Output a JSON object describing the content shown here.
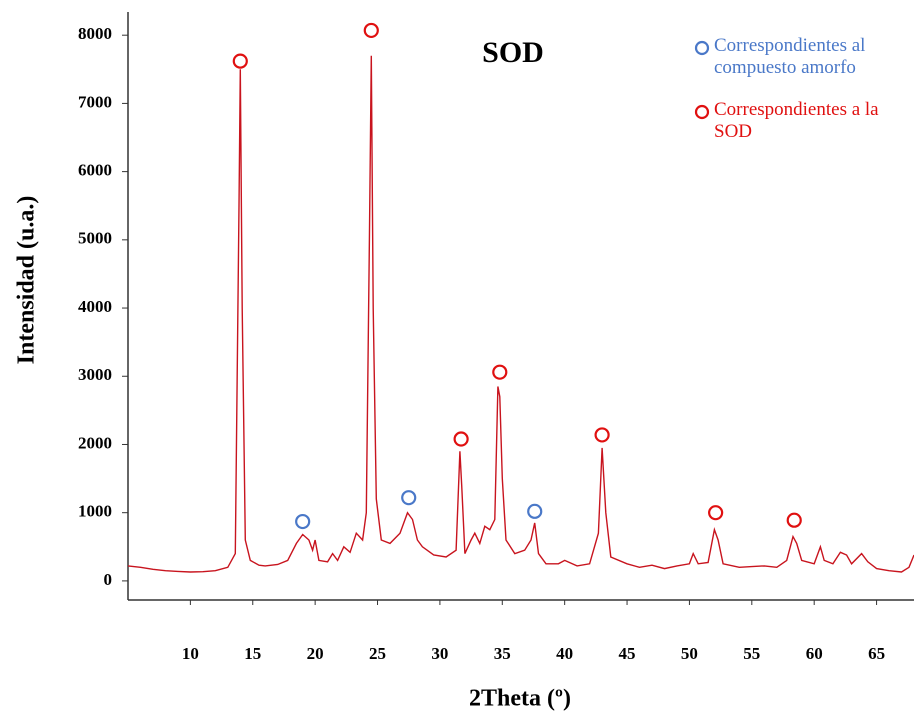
{
  "chart_data": {
    "type": "line",
    "title": "SOD",
    "x_label": "2Theta (º)",
    "y_label": "Intensidad (u.a.)",
    "color": "#c8141e",
    "xlim": [
      5,
      68
    ],
    "xticks": [
      10,
      15,
      20,
      25,
      30,
      35,
      40,
      45,
      50,
      55,
      60,
      65
    ],
    "ylim": [
      -280,
      8340
    ],
    "yticks": [
      0,
      1000,
      2000,
      3000,
      4000,
      5000,
      6000,
      7000,
      8000
    ],
    "x": [
      5,
      6,
      7,
      8,
      9,
      10,
      11,
      12,
      13,
      13.6,
      13.9,
      14.0,
      14.15,
      14.4,
      14.8,
      15.5,
      16,
      17,
      17.8,
      18.5,
      19,
      19.5,
      19.8,
      20,
      20.3,
      21,
      21.4,
      21.8,
      22.3,
      22.8,
      23.3,
      23.8,
      24.1,
      24.35,
      24.5,
      24.65,
      24.9,
      25.3,
      26,
      26.8,
      27.4,
      27.8,
      28.2,
      28.6,
      29.5,
      30.5,
      31.3,
      31.6,
      31.75,
      32,
      32.5,
      32.8,
      33.2,
      33.6,
      34,
      34.4,
      34.65,
      34.8,
      35,
      35.3,
      36,
      36.8,
      37.3,
      37.6,
      37.9,
      38.5,
      39.5,
      40,
      41,
      42,
      42.7,
      43,
      43.3,
      43.7,
      45,
      46,
      47,
      48,
      49,
      50,
      50.3,
      50.7,
      51.5,
      52,
      52.3,
      52.7,
      54,
      55,
      56,
      57,
      57.8,
      58.3,
      58.6,
      59,
      60,
      60.5,
      60.8,
      61.5,
      62.1,
      62.6,
      63,
      63.8,
      64.3,
      65,
      66,
      67,
      67.6,
      68
    ],
    "values": [
      220,
      200,
      170,
      150,
      140,
      130,
      135,
      150,
      200,
      400,
      5500,
      7500,
      4000,
      600,
      300,
      230,
      220,
      240,
      300,
      550,
      680,
      600,
      450,
      600,
      300,
      280,
      400,
      300,
      500,
      420,
      700,
      600,
      1000,
      5000,
      7700,
      4000,
      1200,
      600,
      550,
      700,
      1000,
      900,
      600,
      500,
      380,
      350,
      450,
      1900,
      1400,
      400,
      600,
      700,
      550,
      800,
      750,
      900,
      2850,
      2700,
      1500,
      600,
      400,
      450,
      600,
      850,
      400,
      250,
      250,
      300,
      220,
      250,
      700,
      1950,
      1000,
      350,
      250,
      200,
      230,
      180,
      220,
      250,
      400,
      250,
      270,
      750,
      600,
      250,
      200,
      210,
      220,
      200,
      300,
      650,
      550,
      300,
      250,
      500,
      300,
      250,
      420,
      380,
      250,
      400,
      280,
      180,
      150,
      130,
      200,
      380
    ],
    "series": [
      {
        "name": "Correspondientes al compuesto amorfo",
        "color": "#4a78c8",
        "x": [
          19,
          27.5,
          37.6
        ],
        "values": [
          870,
          1220,
          1020
        ]
      },
      {
        "name": "Correspondientes a la SOD",
        "color": "#e01010",
        "x": [
          14,
          24.5,
          31.7,
          34.8,
          43,
          52.1,
          58.4
        ],
        "values": [
          7620,
          8070,
          2080,
          3060,
          2140,
          1000,
          890
        ]
      }
    ]
  }
}
